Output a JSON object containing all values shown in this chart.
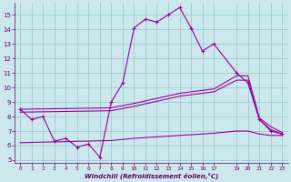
{
  "background_color": "#cce8ec",
  "grid_color": "#99ccd4",
  "line_color": "#990099",
  "spine_color": "#660066",
  "xlim": [
    -0.5,
    23.5
  ],
  "ylim": [
    4.8,
    15.8
  ],
  "xlabel": "Windchill (Refroidissement éolien,°C)",
  "xticks": [
    0,
    1,
    2,
    3,
    4,
    5,
    6,
    7,
    8,
    9,
    10,
    11,
    12,
    13,
    14,
    15,
    16,
    17,
    19,
    20,
    21,
    22,
    23
  ],
  "yticks": [
    5,
    6,
    7,
    8,
    9,
    10,
    11,
    12,
    13,
    14,
    15
  ],
  "series": [
    {
      "x": [
        0,
        1,
        2,
        3,
        4,
        5,
        6,
        7,
        8,
        9,
        10,
        11,
        12,
        13,
        14,
        15,
        16,
        17,
        19,
        20,
        21,
        22,
        23
      ],
      "y": [
        8.5,
        7.8,
        8.0,
        6.3,
        6.5,
        5.9,
        6.1,
        5.2,
        9.0,
        10.3,
        14.1,
        14.7,
        14.5,
        15.0,
        15.5,
        14.1,
        12.5,
        13.0,
        11.0,
        10.3,
        7.8,
        7.0,
        6.8
      ],
      "marker": "+"
    },
    {
      "x": [
        0,
        8,
        10,
        14,
        17,
        19,
        20,
        21,
        22,
        23
      ],
      "y": [
        8.5,
        8.6,
        8.9,
        9.6,
        9.9,
        10.8,
        10.8,
        7.9,
        7.3,
        6.9
      ]
    },
    {
      "x": [
        0,
        8,
        10,
        14,
        17,
        19,
        20,
        21,
        22,
        23
      ],
      "y": [
        8.3,
        8.4,
        8.7,
        9.4,
        9.7,
        10.5,
        10.5,
        7.8,
        7.1,
        6.8
      ]
    },
    {
      "x": [
        0,
        8,
        10,
        14,
        17,
        19,
        20,
        21,
        22,
        23
      ],
      "y": [
        6.2,
        6.35,
        6.5,
        6.7,
        6.85,
        7.0,
        7.0,
        6.8,
        6.7,
        6.7
      ]
    }
  ]
}
